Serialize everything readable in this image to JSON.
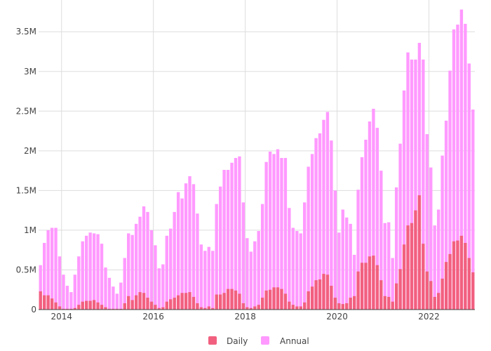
{
  "chart_data": {
    "type": "bar",
    "barmode": "overlay",
    "x_start": "2013-07",
    "x_step": "month",
    "xlim": [
      "2013-07",
      "2022-10"
    ],
    "x_tick_labels": [
      "2014",
      "2016",
      "2018",
      "2020",
      "2022"
    ],
    "y_tick_labels": [
      "0",
      "0.5M",
      "1M",
      "1.5M",
      "2M",
      "2.5M",
      "3M",
      "3.5M"
    ],
    "ylim": [
      0,
      3900000
    ],
    "grid": true,
    "legend_position": "bottom-center",
    "colors": {
      "Annual": "#ff99ff",
      "Daily": "#f2607f",
      "grid": "#dddddd",
      "axis": "#444444"
    },
    "series": [
      {
        "name": "Annual",
        "values": [
          560000,
          840000,
          1000000,
          1030000,
          1030000,
          670000,
          440000,
          300000,
          220000,
          440000,
          670000,
          860000,
          930000,
          970000,
          960000,
          950000,
          830000,
          530000,
          400000,
          290000,
          200000,
          340000,
          650000,
          960000,
          940000,
          1080000,
          1170000,
          1300000,
          1230000,
          1000000,
          810000,
          520000,
          570000,
          930000,
          1020000,
          1230000,
          1480000,
          1400000,
          1590000,
          1680000,
          1580000,
          1210000,
          820000,
          740000,
          790000,
          740000,
          1330000,
          1550000,
          1760000,
          1760000,
          1850000,
          1910000,
          1930000,
          1350000,
          900000,
          730000,
          860000,
          990000,
          1330000,
          1860000,
          1990000,
          1960000,
          2020000,
          1910000,
          1910000,
          1280000,
          1030000,
          990000,
          960000,
          1350000,
          1800000,
          1960000,
          2160000,
          2220000,
          2390000,
          2490000,
          2130000,
          1500000,
          970000,
          1260000,
          1160000,
          1080000,
          690000,
          1510000,
          1920000,
          2140000,
          2370000,
          2530000,
          2290000,
          1750000,
          1090000,
          1100000,
          650000,
          1540000,
          2090000,
          2760000,
          3240000,
          3150000,
          3150000,
          3360000,
          3150000,
          2210000,
          1790000,
          1060000,
          1260000,
          1940000,
          2380000,
          3010000,
          3530000,
          3590000,
          3780000,
          3600000,
          3100000,
          2520000
        ]
      },
      {
        "name": "Daily",
        "values": [
          230000,
          180000,
          180000,
          140000,
          90000,
          40000,
          10000,
          10000,
          10000,
          20000,
          60000,
          100000,
          110000,
          110000,
          120000,
          90000,
          60000,
          30000,
          10000,
          10000,
          10000,
          10000,
          80000,
          170000,
          120000,
          180000,
          220000,
          210000,
          150000,
          100000,
          60000,
          20000,
          30000,
          100000,
          130000,
          150000,
          180000,
          210000,
          210000,
          220000,
          160000,
          80000,
          30000,
          20000,
          40000,
          20000,
          190000,
          190000,
          210000,
          260000,
          260000,
          240000,
          200000,
          80000,
          30000,
          20000,
          40000,
          60000,
          150000,
          240000,
          250000,
          280000,
          280000,
          260000,
          200000,
          100000,
          60000,
          40000,
          40000,
          90000,
          230000,
          290000,
          370000,
          380000,
          450000,
          440000,
          300000,
          150000,
          80000,
          70000,
          80000,
          150000,
          170000,
          480000,
          590000,
          590000,
          670000,
          680000,
          560000,
          370000,
          170000,
          160000,
          100000,
          330000,
          510000,
          820000,
          1060000,
          1090000,
          1250000,
          1440000,
          830000,
          480000,
          360000,
          160000,
          210000,
          390000,
          600000,
          700000,
          860000,
          870000,
          930000,
          840000,
          650000,
          470000
        ]
      }
    ]
  }
}
